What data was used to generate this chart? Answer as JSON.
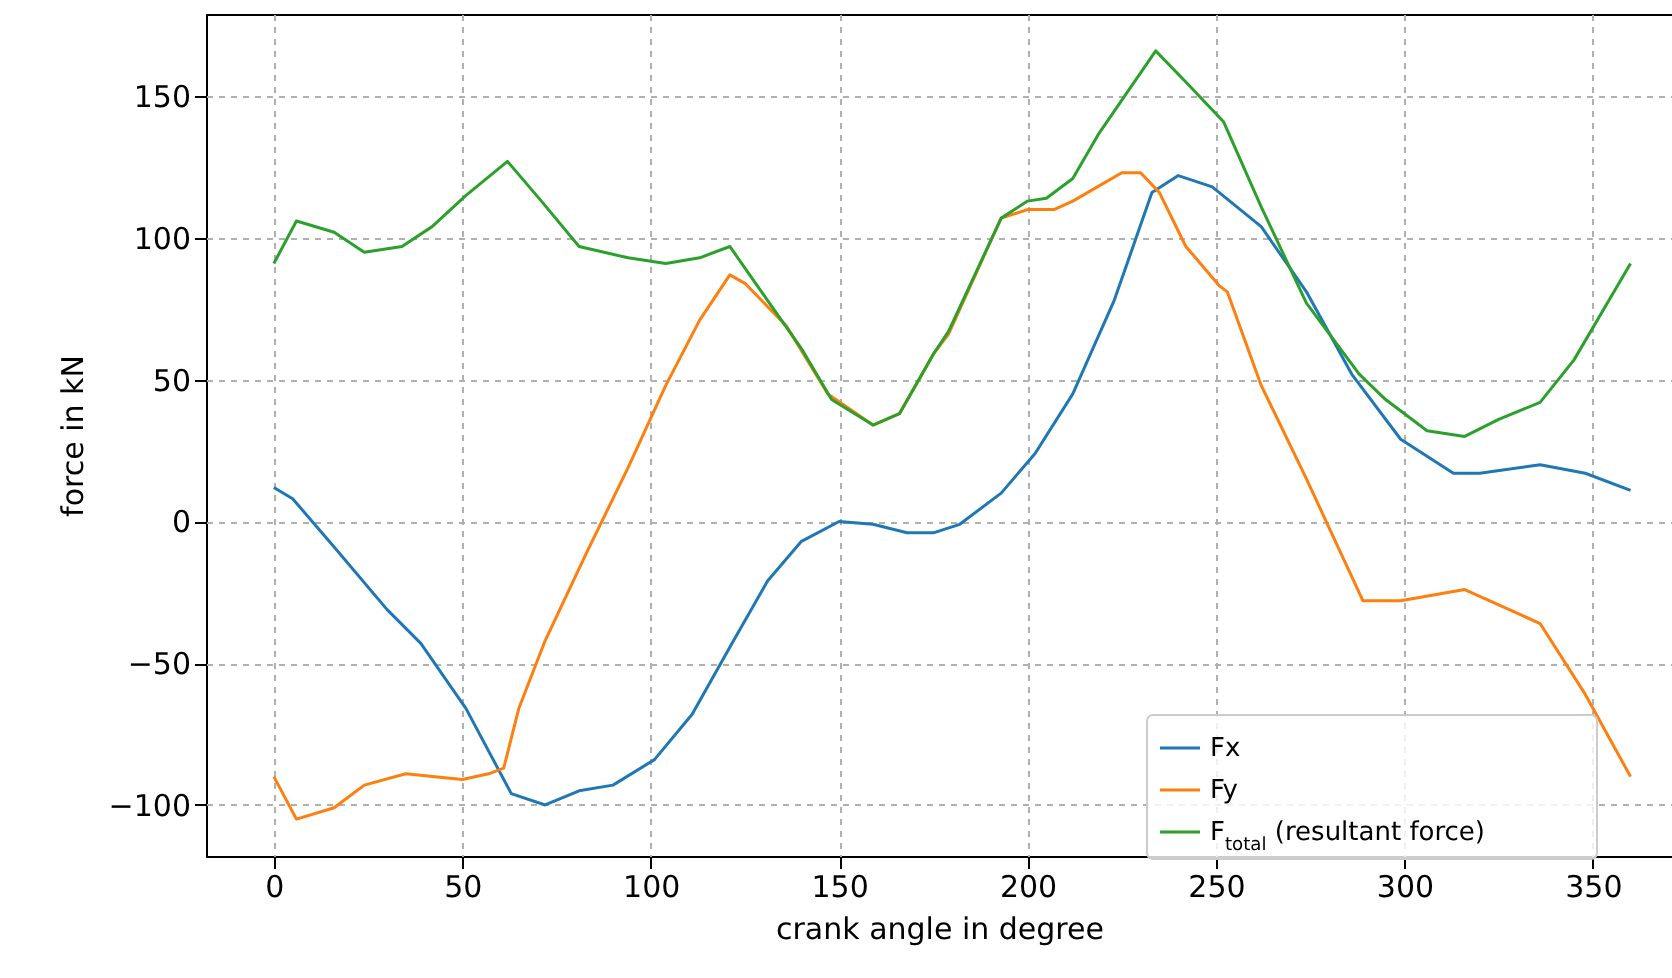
{
  "chart_data": {
    "type": "line",
    "xlabel": "crank angle in degree",
    "ylabel": "force in kN",
    "xlim": [
      -18,
      371
    ],
    "ylim": [
      -118,
      179
    ],
    "xticks": [
      0,
      50,
      100,
      150,
      200,
      250,
      300,
      350
    ],
    "yticks": [
      -100,
      -50,
      0,
      50,
      100,
      150
    ],
    "grid": true,
    "legend": "bottom right",
    "line_style": "solid",
    "series": [
      {
        "name": "Fx",
        "color": "#1f77b4",
        "x": [
          0,
          5,
          16,
          30,
          39,
          51,
          63,
          72,
          81,
          90,
          101,
          111,
          122,
          131,
          140,
          150,
          159,
          168,
          175,
          182,
          193,
          202,
          212,
          223,
          233,
          240,
          249,
          262,
          274,
          286,
          299,
          313,
          320,
          336,
          348,
          360
        ],
        "values": [
          12,
          8,
          -9,
          -31,
          -43,
          -66,
          -96,
          -100,
          -95,
          -93,
          -84,
          -68,
          -42,
          -21,
          -7,
          0,
          -1,
          -4,
          -4,
          -1,
          10,
          24,
          45,
          78,
          116,
          122,
          118,
          104,
          81,
          52,
          29,
          17,
          17,
          20,
          17,
          11
        ]
      },
      {
        "name": "Fy",
        "color": "#ff7f0e",
        "x": [
          0,
          6,
          16,
          24,
          35,
          50,
          57,
          61,
          65,
          72,
          83,
          94,
          104,
          113,
          121,
          125,
          136,
          147,
          159,
          166,
          175,
          179,
          193,
          200,
          207,
          212,
          225,
          230,
          235,
          242,
          251,
          253,
          262,
          274,
          289,
          299,
          316,
          336,
          348,
          360
        ],
        "values": [
          -90,
          -105,
          -101,
          -93,
          -89,
          -91,
          -89,
          -87,
          -66,
          -42,
          -11,
          19,
          48,
          71,
          87,
          84,
          69,
          45,
          34,
          38,
          59,
          66,
          107,
          110,
          110,
          113,
          123,
          123,
          116,
          97,
          83,
          81,
          48,
          15,
          -28,
          -28,
          -24,
          -36,
          -61,
          -90
        ]
      },
      {
        "name": "F$_{total}$ (resultant force)",
        "color": "#2ca02c",
        "x": [
          0,
          6,
          16,
          24,
          34,
          42,
          51,
          62,
          71,
          81,
          94,
          104,
          113,
          121,
          131,
          140,
          148,
          159,
          166,
          175,
          179,
          193,
          200,
          205,
          212,
          219,
          234,
          242,
          252,
          262,
          274,
          288,
          295,
          306,
          316,
          325,
          336,
          345,
          360
        ],
        "values": [
          91,
          106,
          102,
          95,
          97,
          104,
          115,
          127,
          113,
          97,
          93,
          91,
          93,
          97,
          78,
          61,
          43,
          34,
          38,
          59,
          67,
          107,
          113,
          114,
          121,
          137,
          166,
          155,
          141,
          111,
          77,
          52,
          43,
          32,
          30,
          36,
          42,
          57,
          91
        ]
      }
    ]
  }
}
